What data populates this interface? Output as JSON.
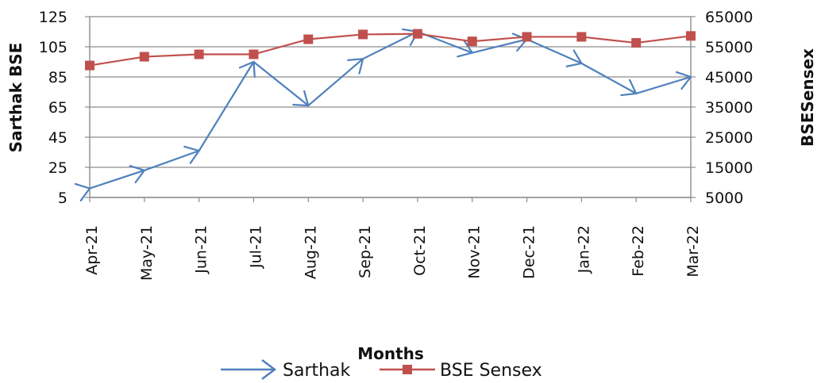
{
  "chart_data": {
    "type": "line",
    "categories": [
      "Apr-21",
      "May-21",
      "Jun-21",
      "Jul-21",
      "Aug-21",
      "Sep-21",
      "Oct-21",
      "Nov-21",
      "Dec-21",
      "Jan-22",
      "Feb-22",
      "Mar-22"
    ],
    "xlabel": "Months",
    "ylabel_left": "Sarthak BSE",
    "ylabel_right": "BSESensex",
    "y_left": {
      "range": [
        5,
        125
      ],
      "ticks": [
        5,
        25,
        45,
        65,
        85,
        105,
        125
      ]
    },
    "y_right": {
      "range": [
        5000,
        65000
      ],
      "ticks": [
        5000,
        15000,
        25000,
        35000,
        45000,
        55000,
        65000
      ]
    },
    "grid": true,
    "legend_position": "bottom",
    "series": [
      {
        "name": "Sarthak",
        "axis": "left",
        "color": "#4f81bd",
        "marker": "arrow",
        "values": [
          11,
          23,
          36,
          95,
          66,
          97,
          115,
          101,
          110,
          94,
          74,
          85
        ]
      },
      {
        "name": "BSE Sensex",
        "axis": "right",
        "color": "#c0504d",
        "marker": "square",
        "values": [
          48800,
          51700,
          52500,
          52500,
          57500,
          59100,
          59300,
          56800,
          58300,
          58300,
          56300,
          58600
        ]
      }
    ]
  }
}
